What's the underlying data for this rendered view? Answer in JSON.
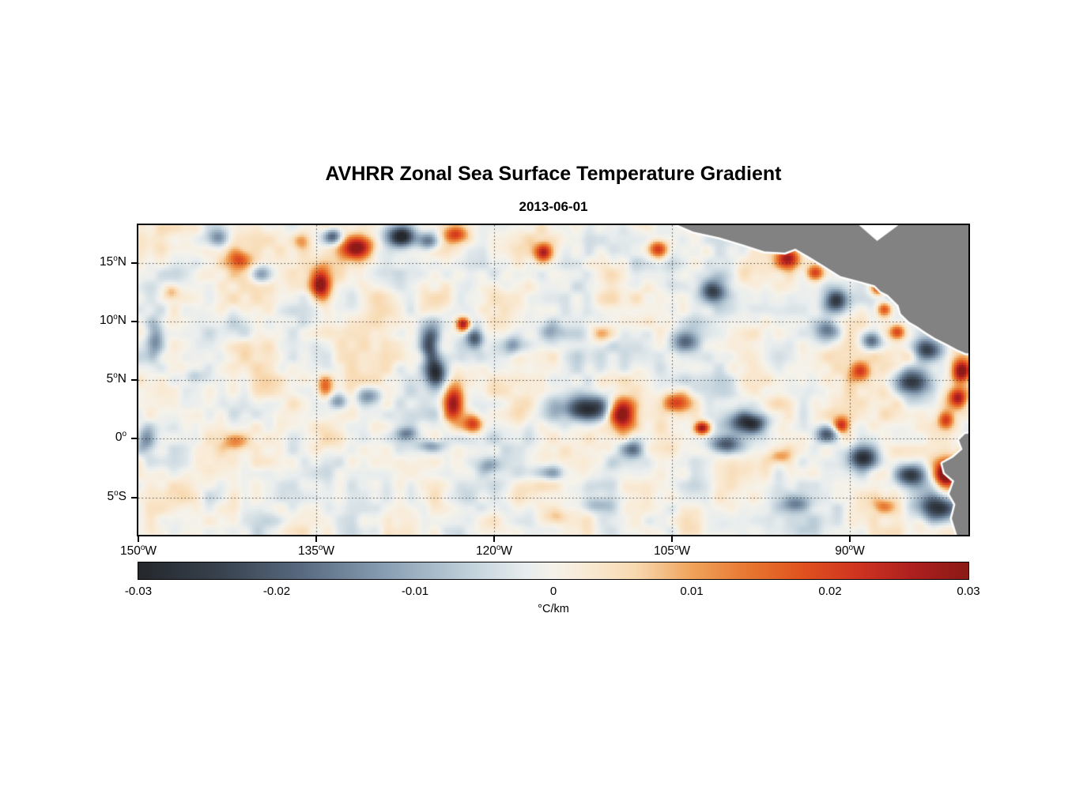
{
  "chart_data": {
    "type": "heatmap",
    "title": "AVHRR Zonal Sea Surface Temperature Gradient",
    "subtitle": "2013-06-01",
    "variable": "zonal sea surface temperature gradient",
    "units": "°C/km",
    "extent": {
      "lon_min": -150,
      "lon_max": -80,
      "lat_min": -8.2,
      "lat_max": 18.25
    },
    "degree_glyph": "o",
    "x_ticks": [
      {
        "text": "150",
        "hemi": "W",
        "lon": -150
      },
      {
        "text": "135",
        "hemi": "W",
        "lon": -135
      },
      {
        "text": "120",
        "hemi": "W",
        "lon": -120
      },
      {
        "text": "105",
        "hemi": "W",
        "lon": -105
      },
      {
        "text": "90",
        "hemi": "W",
        "lon": -90
      }
    ],
    "y_ticks": [
      {
        "text": "15",
        "hemi": "N",
        "lat": 15
      },
      {
        "text": "10",
        "hemi": "N",
        "lat": 10
      },
      {
        "text": "5",
        "hemi": "N",
        "lat": 5
      },
      {
        "text": "0",
        "hemi": "",
        "lat": 0
      },
      {
        "text": "5",
        "hemi": "S",
        "lat": -5
      }
    ],
    "grid": {
      "style": "dotted",
      "lats": [
        15,
        10,
        5,
        0,
        -5
      ],
      "lons": [
        -135,
        -120,
        -105,
        -90
      ]
    },
    "colorbar": {
      "min": -0.03,
      "max": 0.03,
      "tick_labels": [
        "-0.03",
        "-0.02",
        "-0.01",
        "0",
        "0.01",
        "0.02",
        "0.03"
      ],
      "tick_values": [
        -0.03,
        -0.02,
        -0.01,
        0,
        0.01,
        0.02,
        0.03
      ],
      "unit_label": "°C/km"
    },
    "colormap": [
      [
        -0.03,
        "#25282d"
      ],
      [
        -0.024,
        "#39434f"
      ],
      [
        -0.018,
        "#5a6c82"
      ],
      [
        -0.012,
        "#8aa0b4"
      ],
      [
        -0.006,
        "#c2d2dc"
      ],
      [
        -0.002,
        "#e8edee"
      ],
      [
        0.0,
        "#f5f2ea"
      ],
      [
        0.002,
        "#f9ecd9"
      ],
      [
        0.006,
        "#f8d9b0"
      ],
      [
        0.01,
        "#f0a45c"
      ],
      [
        0.014,
        "#e87832"
      ],
      [
        0.018,
        "#e0531f"
      ],
      [
        0.022,
        "#d03420"
      ],
      [
        0.026,
        "#ad2020"
      ],
      [
        0.03,
        "#8c1a15"
      ]
    ],
    "land": {
      "color": "#828282",
      "halo": "#ffffff",
      "polygons": {
        "central_america": [
          [
            -104.6,
            18.3
          ],
          [
            -103.2,
            17.7
          ],
          [
            -101.0,
            17.2
          ],
          [
            -99.0,
            16.6
          ],
          [
            -97.2,
            16.0
          ],
          [
            -95.5,
            15.9
          ],
          [
            -94.6,
            16.25
          ],
          [
            -93.5,
            15.6
          ],
          [
            -92.2,
            14.8
          ],
          [
            -90.8,
            13.9
          ],
          [
            -89.3,
            13.5
          ],
          [
            -87.9,
            13.1
          ],
          [
            -87.4,
            12.6
          ],
          [
            -86.8,
            12.3
          ],
          [
            -85.9,
            11.4
          ],
          [
            -85.7,
            10.7
          ],
          [
            -85.0,
            10.0
          ],
          [
            -84.3,
            9.6
          ],
          [
            -83.6,
            9.1
          ],
          [
            -82.8,
            8.6
          ],
          [
            -81.8,
            8.1
          ],
          [
            -80.9,
            7.6
          ],
          [
            -80.2,
            7.3
          ],
          [
            -79.0,
            7.3
          ],
          [
            -79.0,
            18.3
          ]
        ],
        "south_america": [
          [
            -79.0,
            0.6
          ],
          [
            -80.3,
            0.4
          ],
          [
            -80.8,
            -0.1
          ],
          [
            -80.5,
            -0.9
          ],
          [
            -81.3,
            -1.6
          ],
          [
            -82.2,
            -2.1
          ],
          [
            -82.0,
            -2.9
          ],
          [
            -81.2,
            -3.6
          ],
          [
            -81.6,
            -4.7
          ],
          [
            -81.1,
            -5.6
          ],
          [
            -81.4,
            -6.8
          ],
          [
            -80.9,
            -8.4
          ],
          [
            -79.0,
            -8.4
          ]
        ]
      },
      "no_data_notch": [
        [
          -89.4,
          18.4
        ],
        [
          -85.7,
          18.4
        ],
        [
          -87.7,
          16.9
        ]
      ]
    },
    "noise": {
      "seed": 11,
      "scales_deg": [
        2.4,
        1.0
      ],
      "amps": [
        0.005,
        0.0028
      ]
    },
    "features": [
      [
        -131.5,
        16.3,
        0.03,
        1.3,
        0.9
      ],
      [
        -127.8,
        17.3,
        -0.03,
        1.0,
        0.8
      ],
      [
        -123.2,
        17.4,
        0.022,
        0.9,
        0.7
      ],
      [
        -125.5,
        16.9,
        -0.018,
        0.8,
        0.7
      ],
      [
        -134.6,
        13.1,
        0.032,
        0.8,
        1.3
      ],
      [
        -141.5,
        15.3,
        0.014,
        0.9,
        0.7
      ],
      [
        -139.6,
        14.1,
        -0.012,
        0.8,
        0.7
      ],
      [
        -143.3,
        17.2,
        -0.013,
        0.9,
        0.7
      ],
      [
        -136.2,
        16.9,
        0.012,
        0.7,
        0.6
      ],
      [
        -133.6,
        17.3,
        -0.02,
        0.7,
        0.6
      ],
      [
        -115.8,
        15.9,
        0.024,
        0.7,
        0.7
      ],
      [
        -106.2,
        16.2,
        0.022,
        0.8,
        0.7
      ],
      [
        -101.5,
        12.6,
        -0.024,
        1.0,
        0.9
      ],
      [
        -97.5,
        17.3,
        -0.02,
        0.8,
        0.7
      ],
      [
        -95.2,
        15.4,
        0.026,
        0.9,
        0.8
      ],
      [
        -92.9,
        14.2,
        0.02,
        0.7,
        0.6
      ],
      [
        -91.2,
        11.8,
        -0.024,
        0.9,
        0.9
      ],
      [
        -87.6,
        12.9,
        0.024,
        0.6,
        0.6
      ],
      [
        -87.1,
        11.1,
        0.02,
        0.6,
        0.6
      ],
      [
        -88.2,
        8.4,
        -0.02,
        0.8,
        0.7
      ],
      [
        -86.0,
        9.2,
        0.018,
        0.6,
        0.6
      ],
      [
        -83.4,
        7.6,
        -0.028,
        1.1,
        0.9
      ],
      [
        -80.6,
        5.8,
        0.03,
        0.7,
        0.9
      ],
      [
        -125.4,
        7.9,
        -0.024,
        0.7,
        1.4
      ],
      [
        -122.6,
        9.8,
        0.03,
        0.55,
        0.55
      ],
      [
        -121.6,
        8.6,
        -0.02,
        0.7,
        0.8
      ],
      [
        -118.5,
        8.0,
        -0.015,
        0.9,
        0.7
      ],
      [
        -115.2,
        9.1,
        -0.012,
        0.8,
        0.7
      ],
      [
        -111.0,
        9.0,
        0.01,
        0.9,
        0.7
      ],
      [
        -103.9,
        8.3,
        -0.016,
        1.0,
        0.8
      ],
      [
        -91.9,
        9.2,
        -0.02,
        0.9,
        0.8
      ],
      [
        -89.2,
        5.8,
        0.016,
        0.8,
        0.7
      ],
      [
        -85.0,
        4.8,
        -0.026,
        1.4,
        1.1
      ],
      [
        -80.9,
        3.4,
        0.028,
        0.7,
        0.8
      ],
      [
        -124.9,
        5.6,
        -0.028,
        0.8,
        1.2
      ],
      [
        -123.4,
        2.9,
        0.032,
        0.8,
        1.4
      ],
      [
        -121.8,
        1.2,
        0.024,
        0.8,
        0.7
      ],
      [
        -130.6,
        3.6,
        -0.014,
        1.0,
        0.7
      ],
      [
        -133.2,
        3.2,
        -0.012,
        0.8,
        0.6
      ],
      [
        -134.3,
        4.5,
        0.015,
        0.6,
        0.9
      ],
      [
        -112.2,
        2.6,
        -0.032,
        1.8,
        1.0
      ],
      [
        -109.2,
        2.1,
        0.035,
        1.0,
        1.2
      ],
      [
        -104.5,
        3.1,
        0.018,
        1.2,
        0.8
      ],
      [
        -98.5,
        1.3,
        -0.028,
        1.5,
        0.8
      ],
      [
        -102.5,
        0.9,
        0.03,
        0.6,
        0.5
      ],
      [
        -91.9,
        0.3,
        -0.026,
        0.9,
        0.7
      ],
      [
        -90.7,
        1.1,
        0.022,
        0.6,
        0.6
      ],
      [
        -81.9,
        1.6,
        0.02,
        0.6,
        0.7
      ],
      [
        -125.3,
        -0.6,
        -0.012,
        1.0,
        0.5
      ],
      [
        -120.5,
        -2.3,
        -0.01,
        0.9,
        0.6
      ],
      [
        -115.2,
        -2.9,
        -0.015,
        1.3,
        0.6
      ],
      [
        -108.5,
        -0.9,
        -0.018,
        1.0,
        0.7
      ],
      [
        -100.5,
        -0.5,
        -0.02,
        1.2,
        0.7
      ],
      [
        -95.9,
        -1.5,
        0.012,
        0.8,
        0.6
      ],
      [
        -88.9,
        -1.6,
        -0.026,
        1.1,
        0.9
      ],
      [
        -84.9,
        -3.1,
        -0.028,
        1.2,
        0.9
      ],
      [
        -81.9,
        -3.0,
        0.035,
        0.8,
        1.0
      ],
      [
        -80.2,
        -1.9,
        0.028,
        0.6,
        0.8
      ],
      [
        -82.5,
        -5.9,
        -0.03,
        1.6,
        1.1
      ],
      [
        -80.7,
        -4.6,
        0.026,
        0.5,
        0.7
      ],
      [
        -87.2,
        -5.7,
        0.01,
        0.9,
        0.6
      ],
      [
        -94.5,
        -5.6,
        -0.012,
        1.1,
        0.6
      ],
      [
        -111.2,
        -5.7,
        -0.008,
        1.2,
        0.6
      ],
      [
        -114.8,
        -6.7,
        0.008,
        0.9,
        0.6
      ],
      [
        -148.6,
        8.6,
        -0.015,
        0.7,
        1.5
      ],
      [
        -149.4,
        -0.1,
        -0.012,
        0.7,
        1.0
      ],
      [
        -141.8,
        -0.3,
        0.009,
        1.0,
        0.6
      ],
      [
        -145.2,
        5.4,
        -0.008,
        0.9,
        0.7
      ],
      [
        -147.2,
        12.6,
        0.01,
        0.6,
        0.6
      ],
      [
        -127.4,
        0.4,
        -0.012,
        0.8,
        0.5
      ]
    ]
  }
}
